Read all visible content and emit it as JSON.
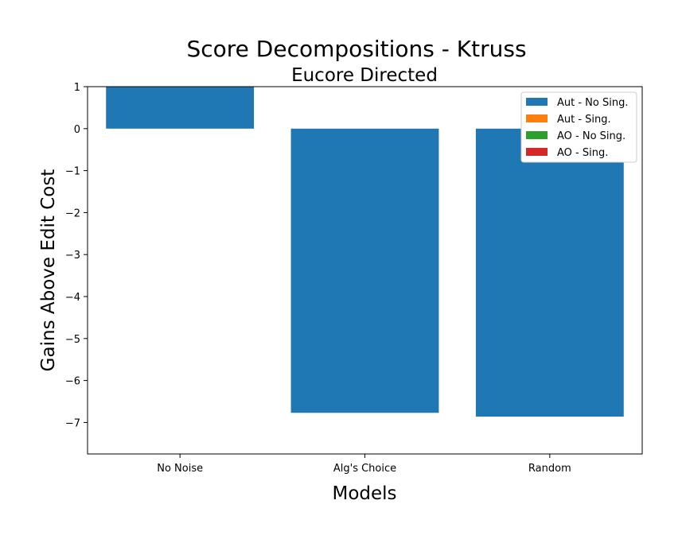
{
  "chart_data": {
    "type": "bar",
    "title": "Score Decompositions - Ktruss",
    "subtitle": "Eucore Directed",
    "xlabel": "Models",
    "ylabel": "Gains Above Edit Cost",
    "categories": [
      "No Noise",
      "Alg's Choice",
      "Random"
    ],
    "ylim": [
      -7.75,
      1.0
    ],
    "yticks": [
      1,
      0,
      -1,
      -2,
      -3,
      -4,
      -5,
      -6,
      -7
    ],
    "ytick_labels": [
      "1",
      "0",
      "−1",
      "−2",
      "−3",
      "−4",
      "−5",
      "−6",
      "−7"
    ],
    "grid": false,
    "legend_position": "top-right",
    "series": [
      {
        "name": "Aut - No Sing.",
        "color": "#1f77b4",
        "values": [
          1.0,
          -6.77,
          -6.86
        ]
      },
      {
        "name": "Aut - Sing.",
        "color": "#ff7f0e",
        "values": [
          0,
          0,
          0
        ]
      },
      {
        "name": "AO - No Sing.",
        "color": "#2ca02c",
        "values": [
          0,
          0,
          0
        ]
      },
      {
        "name": "AO - Sing.",
        "color": "#d62728",
        "values": [
          0,
          0,
          0
        ]
      }
    ]
  }
}
